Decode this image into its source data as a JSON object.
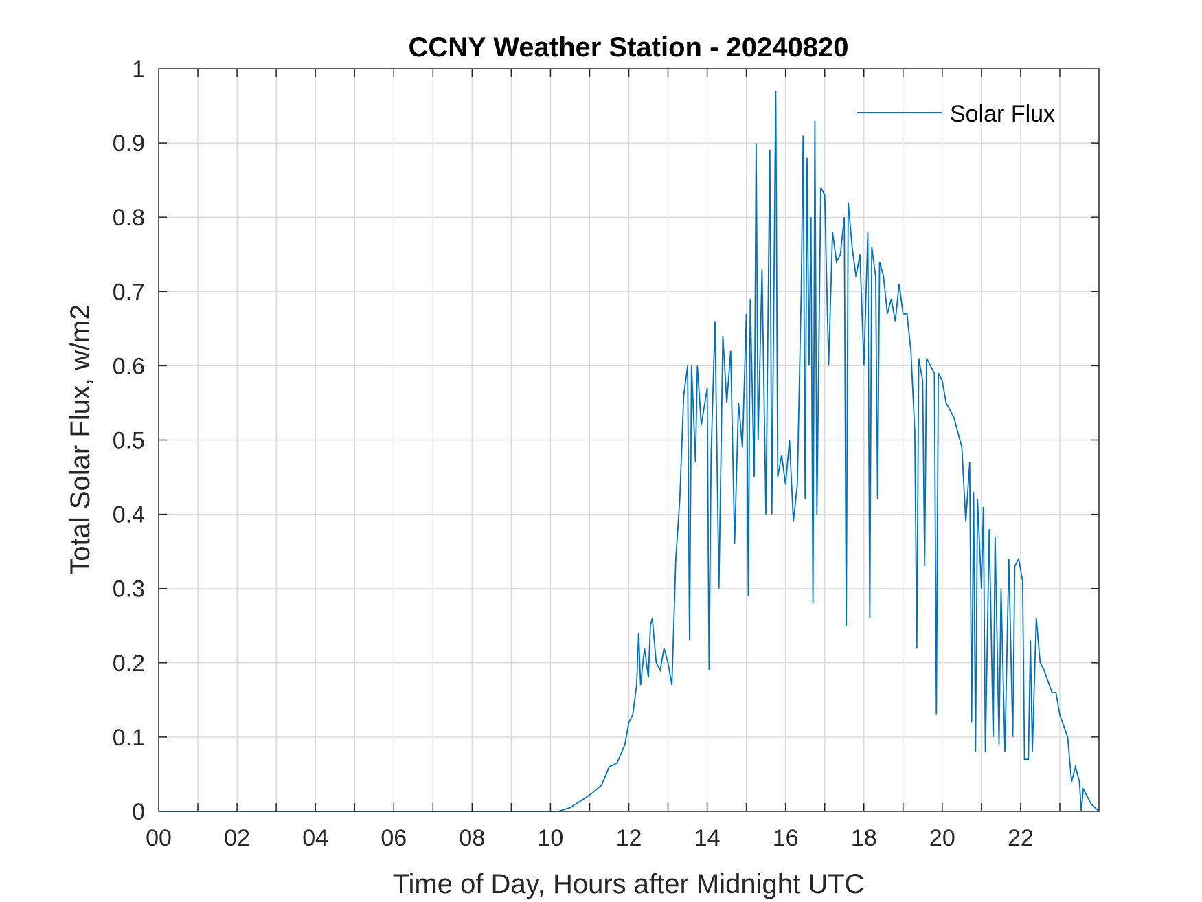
{
  "chart_data": {
    "type": "line",
    "title": "CCNY Weather Station - 20240820",
    "xlabel": "Time of Day, Hours after Midnight UTC",
    "ylabel": "Total Solar Flux, w/m2",
    "xlim": [
      0,
      24
    ],
    "ylim": [
      0,
      1
    ],
    "xticks": [
      0,
      2,
      4,
      6,
      8,
      10,
      12,
      14,
      16,
      18,
      20,
      22
    ],
    "xtick_labels": [
      "00",
      "02",
      "04",
      "06",
      "08",
      "10",
      "12",
      "14",
      "16",
      "18",
      "20",
      "22"
    ],
    "yticks": [
      0,
      0.1,
      0.2,
      0.3,
      0.4,
      0.5,
      0.6,
      0.7,
      0.8,
      0.9,
      1
    ],
    "ytick_labels": [
      "0",
      "0.1",
      "0.2",
      "0.3",
      "0.4",
      "0.5",
      "0.6",
      "0.7",
      "0.8",
      "0.9",
      "1"
    ],
    "grid": true,
    "legend_position": "top-right",
    "colors": {
      "series": "#0072BD"
    },
    "series": [
      {
        "name": "Solar Flux",
        "points": [
          [
            0,
            0
          ],
          [
            10.2,
            0
          ],
          [
            10.5,
            0.005
          ],
          [
            10.8,
            0.015
          ],
          [
            11.0,
            0.022
          ],
          [
            11.3,
            0.035
          ],
          [
            11.5,
            0.06
          ],
          [
            11.7,
            0.065
          ],
          [
            11.9,
            0.09
          ],
          [
            12.0,
            0.12
          ],
          [
            12.1,
            0.13
          ],
          [
            12.2,
            0.17
          ],
          [
            12.25,
            0.24
          ],
          [
            12.3,
            0.17
          ],
          [
            12.4,
            0.22
          ],
          [
            12.5,
            0.18
          ],
          [
            12.55,
            0.25
          ],
          [
            12.6,
            0.26
          ],
          [
            12.7,
            0.2
          ],
          [
            12.8,
            0.19
          ],
          [
            12.9,
            0.22
          ],
          [
            13.0,
            0.2
          ],
          [
            13.1,
            0.17
          ],
          [
            13.2,
            0.34
          ],
          [
            13.3,
            0.42
          ],
          [
            13.4,
            0.56
          ],
          [
            13.5,
            0.6
          ],
          [
            13.55,
            0.23
          ],
          [
            13.6,
            0.6
          ],
          [
            13.7,
            0.47
          ],
          [
            13.75,
            0.6
          ],
          [
            13.85,
            0.52
          ],
          [
            14.0,
            0.57
          ],
          [
            14.05,
            0.19
          ],
          [
            14.1,
            0.48
          ],
          [
            14.2,
            0.66
          ],
          [
            14.3,
            0.3
          ],
          [
            14.4,
            0.64
          ],
          [
            14.5,
            0.55
          ],
          [
            14.6,
            0.62
          ],
          [
            14.7,
            0.36
          ],
          [
            14.8,
            0.55
          ],
          [
            14.9,
            0.49
          ],
          [
            15.0,
            0.67
          ],
          [
            15.05,
            0.29
          ],
          [
            15.1,
            0.69
          ],
          [
            15.2,
            0.45
          ],
          [
            15.25,
            0.9
          ],
          [
            15.3,
            0.5
          ],
          [
            15.4,
            0.73
          ],
          [
            15.5,
            0.4
          ],
          [
            15.6,
            0.89
          ],
          [
            15.65,
            0.4
          ],
          [
            15.75,
            0.97
          ],
          [
            15.8,
            0.45
          ],
          [
            15.9,
            0.48
          ],
          [
            16.0,
            0.44
          ],
          [
            16.1,
            0.5
          ],
          [
            16.2,
            0.39
          ],
          [
            16.3,
            0.44
          ],
          [
            16.4,
            0.7
          ],
          [
            16.45,
            0.91
          ],
          [
            16.5,
            0.42
          ],
          [
            16.55,
            0.88
          ],
          [
            16.6,
            0.6
          ],
          [
            16.65,
            0.8
          ],
          [
            16.7,
            0.28
          ],
          [
            16.75,
            0.93
          ],
          [
            16.8,
            0.4
          ],
          [
            16.9,
            0.84
          ],
          [
            17.0,
            0.83
          ],
          [
            17.1,
            0.6
          ],
          [
            17.2,
            0.78
          ],
          [
            17.3,
            0.74
          ],
          [
            17.4,
            0.75
          ],
          [
            17.5,
            0.8
          ],
          [
            17.55,
            0.25
          ],
          [
            17.6,
            0.82
          ],
          [
            17.7,
            0.76
          ],
          [
            17.8,
            0.72
          ],
          [
            17.9,
            0.75
          ],
          [
            18.0,
            0.6
          ],
          [
            18.1,
            0.78
          ],
          [
            18.15,
            0.26
          ],
          [
            18.2,
            0.76
          ],
          [
            18.3,
            0.72
          ],
          [
            18.35,
            0.42
          ],
          [
            18.4,
            0.74
          ],
          [
            18.5,
            0.72
          ],
          [
            18.6,
            0.67
          ],
          [
            18.7,
            0.69
          ],
          [
            18.8,
            0.66
          ],
          [
            18.9,
            0.71
          ],
          [
            19.0,
            0.67
          ],
          [
            19.1,
            0.67
          ],
          [
            19.2,
            0.62
          ],
          [
            19.3,
            0.51
          ],
          [
            19.35,
            0.22
          ],
          [
            19.4,
            0.61
          ],
          [
            19.5,
            0.58
          ],
          [
            19.55,
            0.33
          ],
          [
            19.6,
            0.61
          ],
          [
            19.7,
            0.6
          ],
          [
            19.8,
            0.59
          ],
          [
            19.85,
            0.13
          ],
          [
            19.9,
            0.59
          ],
          [
            20.0,
            0.58
          ],
          [
            20.1,
            0.55
          ],
          [
            20.3,
            0.53
          ],
          [
            20.5,
            0.49
          ],
          [
            20.6,
            0.39
          ],
          [
            20.7,
            0.47
          ],
          [
            20.75,
            0.12
          ],
          [
            20.8,
            0.43
          ],
          [
            20.85,
            0.08
          ],
          [
            20.9,
            0.42
          ],
          [
            21.0,
            0.3
          ],
          [
            21.05,
            0.41
          ],
          [
            21.1,
            0.08
          ],
          [
            21.2,
            0.38
          ],
          [
            21.3,
            0.1
          ],
          [
            21.35,
            0.37
          ],
          [
            21.45,
            0.09
          ],
          [
            21.5,
            0.3
          ],
          [
            21.6,
            0.08
          ],
          [
            21.7,
            0.34
          ],
          [
            21.8,
            0.1
          ],
          [
            21.85,
            0.33
          ],
          [
            21.95,
            0.34
          ],
          [
            22.05,
            0.31
          ],
          [
            22.1,
            0.07
          ],
          [
            22.2,
            0.07
          ],
          [
            22.25,
            0.23
          ],
          [
            22.3,
            0.08
          ],
          [
            22.4,
            0.26
          ],
          [
            22.5,
            0.2
          ],
          [
            22.6,
            0.19
          ],
          [
            22.8,
            0.16
          ],
          [
            22.9,
            0.16
          ],
          [
            23.0,
            0.13
          ],
          [
            23.2,
            0.1
          ],
          [
            23.3,
            0.04
          ],
          [
            23.4,
            0.06
          ],
          [
            23.5,
            0.04
          ],
          [
            23.55,
            0.0
          ],
          [
            23.6,
            0.03
          ],
          [
            23.8,
            0.01
          ],
          [
            24.0,
            0.0
          ]
        ]
      }
    ]
  }
}
